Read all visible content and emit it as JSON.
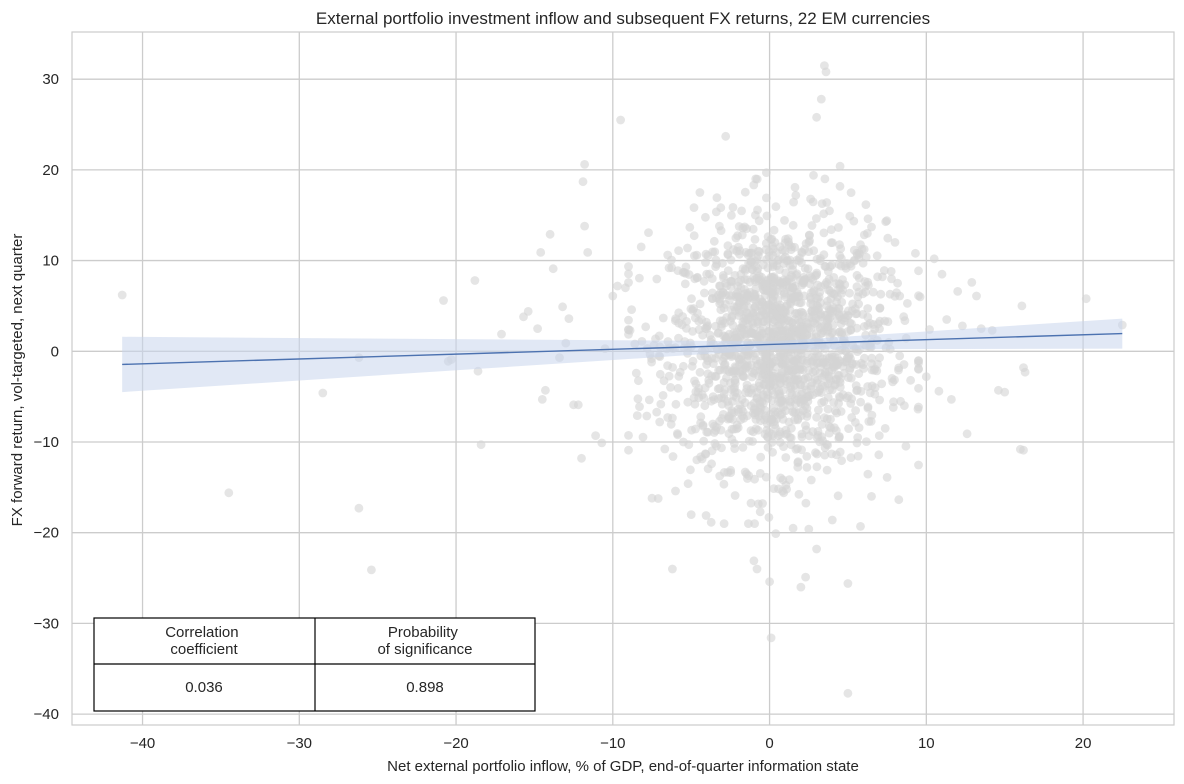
{
  "chart_data": {
    "type": "scatter",
    "title": "External portfolio investment inflow and subsequent FX returns, 22 EM currencies",
    "xlabel": "Net external portfolio inflow, % of GDP, end-of-quarter information state",
    "ylabel": "FX forward return, vol-targeted, next quarter",
    "xlim": [
      -44.5,
      25.8
    ],
    "ylim": [
      -41.2,
      35.2
    ],
    "xticks": [
      -40,
      -30,
      -20,
      -10,
      0,
      10,
      20
    ],
    "yticks": [
      -40,
      -30,
      -20,
      -10,
      0,
      10,
      20,
      30
    ],
    "xtick_labels": [
      "−40",
      "−30",
      "−20",
      "−10",
      "0",
      "10",
      "20"
    ],
    "ytick_labels": [
      "−40",
      "−30",
      "−20",
      "−10",
      "0",
      "10",
      "20",
      "30"
    ],
    "grid": true,
    "point_color": "#d3d3d3",
    "line_color": "#4c72b0",
    "band_color": "#c9d6ec",
    "regression": {
      "x_range": [
        -41.3,
        22.5
      ],
      "y_at_start": -1.45,
      "y_at_end": 1.95,
      "ci_at_start": [
        -4.5,
        1.6
      ],
      "ci_at_x": 0.3,
      "ci_at_x_value": [
        0.2,
        1.1
      ],
      "ci_at_end": [
        0.3,
        3.6
      ]
    },
    "outliers": [
      [
        -41.3,
        6.2
      ],
      [
        -34.5,
        -15.6
      ],
      [
        -28.5,
        -4.6
      ],
      [
        -26.2,
        -0.7
      ],
      [
        -26.2,
        -17.3
      ],
      [
        -25.4,
        -24.1
      ],
      [
        -20.8,
        5.6
      ],
      [
        -20.5,
        -1.1
      ],
      [
        -20.3,
        -0.9
      ],
      [
        -18.8,
        7.8
      ],
      [
        -18.6,
        -2.2
      ],
      [
        -18.4,
        -10.3
      ],
      [
        -17.1,
        1.9
      ],
      [
        -15.7,
        3.8
      ],
      [
        -15.4,
        4.4
      ],
      [
        -14.8,
        2.5
      ],
      [
        -14.6,
        10.9
      ],
      [
        -14.5,
        -5.3
      ],
      [
        -14.3,
        -4.3
      ],
      [
        -14.0,
        12.9
      ],
      [
        -13.8,
        9.1
      ],
      [
        -13.4,
        -0.7
      ],
      [
        -13.2,
        4.9
      ],
      [
        -13.0,
        0.9
      ],
      [
        -12.8,
        3.6
      ],
      [
        -12.5,
        -5.9
      ],
      [
        -12.2,
        -5.9
      ],
      [
        -12.0,
        -11.8
      ],
      [
        -11.9,
        18.7
      ],
      [
        -11.8,
        20.6
      ],
      [
        -11.8,
        13.8
      ],
      [
        -11.6,
        10.9
      ],
      [
        -11.1,
        -9.3
      ],
      [
        -10.7,
        -10.1
      ],
      [
        -10.5,
        0.3
      ],
      [
        -10.0,
        6.1
      ],
      [
        -9.7,
        7.2
      ],
      [
        -9.5,
        25.5
      ],
      [
        -9.2,
        7.0
      ],
      [
        -8.9,
        2.3
      ],
      [
        -8.8,
        4.6
      ],
      [
        -8.6,
        0.8
      ],
      [
        -8.5,
        -2.4
      ],
      [
        -8.3,
        -6.1
      ],
      [
        -7.9,
        2.7
      ],
      [
        -7.5,
        -16.2
      ],
      [
        -7.2,
        -6.7
      ],
      [
        -7.0,
        0.5
      ],
      [
        -6.5,
        -7.3
      ],
      [
        -6.2,
        -24.0
      ],
      [
        -6.0,
        -15.4
      ],
      [
        -5.8,
        11.1
      ],
      [
        -5.7,
        -2.3
      ],
      [
        -5.5,
        -10.0
      ],
      [
        -5.2,
        -14.6
      ],
      [
        -5.0,
        -18.0
      ],
      [
        -4.7,
        -3.6
      ],
      [
        -4.6,
        4.2
      ],
      [
        -4.4,
        -7.9
      ],
      [
        -4.1,
        -11.3
      ],
      [
        -4.0,
        2.7
      ],
      [
        -3.7,
        -12.4
      ],
      [
        -3.6,
        -5.0
      ],
      [
        -3.4,
        5.9
      ],
      [
        -3.2,
        13.8
      ],
      [
        -3.1,
        -8.7
      ],
      [
        -3.0,
        9.7
      ],
      [
        -2.8,
        23.7
      ],
      [
        -2.5,
        -3.5
      ],
      [
        -2.4,
        -9.7
      ],
      [
        -2.3,
        -4.1
      ],
      [
        -2.2,
        -15.9
      ],
      [
        -2.0,
        -6.4
      ],
      [
        -1.9,
        11.1
      ],
      [
        -1.7,
        -10.6
      ],
      [
        -1.5,
        -1.9
      ],
      [
        -1.3,
        -9.9
      ],
      [
        -1.0,
        -23.1
      ],
      [
        -0.9,
        9.4
      ],
      [
        -0.8,
        -24.0
      ],
      [
        -0.6,
        -17.7
      ],
      [
        -0.4,
        -4.8
      ],
      [
        -0.2,
        19.7
      ],
      [
        0.0,
        -25.4
      ],
      [
        0.1,
        -31.6
      ],
      [
        0.4,
        -20.1
      ],
      [
        0.9,
        -15.6
      ],
      [
        1.5,
        -19.5
      ],
      [
        2.0,
        -26.0
      ],
      [
        2.3,
        -24.9
      ],
      [
        2.5,
        -19.6
      ],
      [
        2.8,
        19.4
      ],
      [
        3.0,
        25.8
      ],
      [
        3.3,
        27.8
      ],
      [
        3.5,
        31.5
      ],
      [
        3.6,
        30.8
      ],
      [
        3.0,
        -21.8
      ],
      [
        4.0,
        -18.6
      ],
      [
        4.5,
        20.4
      ],
      [
        5.0,
        -25.6
      ],
      [
        5.0,
        -37.7
      ],
      [
        5.2,
        17.5
      ],
      [
        5.8,
        -19.3
      ],
      [
        6.5,
        -16.0
      ],
      [
        6.5,
        13.7
      ],
      [
        7.0,
        -9.3
      ],
      [
        7.2,
        8.2
      ],
      [
        7.5,
        -13.9
      ],
      [
        8.0,
        12.0
      ],
      [
        8.3,
        6.1
      ],
      [
        8.6,
        -6.0
      ],
      [
        9.0,
        -3.2
      ],
      [
        9.3,
        10.8
      ],
      [
        9.6,
        6.0
      ],
      [
        10.0,
        -2.8
      ],
      [
        10.2,
        2.4
      ],
      [
        10.5,
        10.2
      ],
      [
        10.8,
        -4.4
      ],
      [
        11.0,
        8.5
      ],
      [
        11.3,
        3.5
      ],
      [
        11.6,
        -5.3
      ],
      [
        12.0,
        6.6
      ],
      [
        12.3,
        2.8
      ],
      [
        12.6,
        -9.1
      ],
      [
        12.9,
        7.6
      ],
      [
        13.2,
        6.1
      ],
      [
        13.5,
        2.5
      ],
      [
        14.2,
        2.3
      ],
      [
        14.6,
        -4.3
      ],
      [
        15.0,
        -4.5
      ],
      [
        16.0,
        -10.8
      ],
      [
        16.2,
        -10.9
      ],
      [
        16.1,
        5.0
      ],
      [
        16.2,
        -1.8
      ],
      [
        16.3,
        -2.3
      ],
      [
        20.2,
        5.8
      ],
      [
        22.5,
        2.9
      ]
    ],
    "cluster": {
      "count": 1650,
      "center": [
        0.6,
        0.8
      ],
      "sd": [
        3.4,
        6.7
      ]
    },
    "table": {
      "headers": [
        "Correlation coefficient",
        "Probability of significance"
      ],
      "header_lines": [
        [
          "Correlation",
          "coefficient"
        ],
        [
          "Probability",
          "of significance"
        ]
      ],
      "values": [
        "0.036",
        "0.898"
      ]
    }
  }
}
